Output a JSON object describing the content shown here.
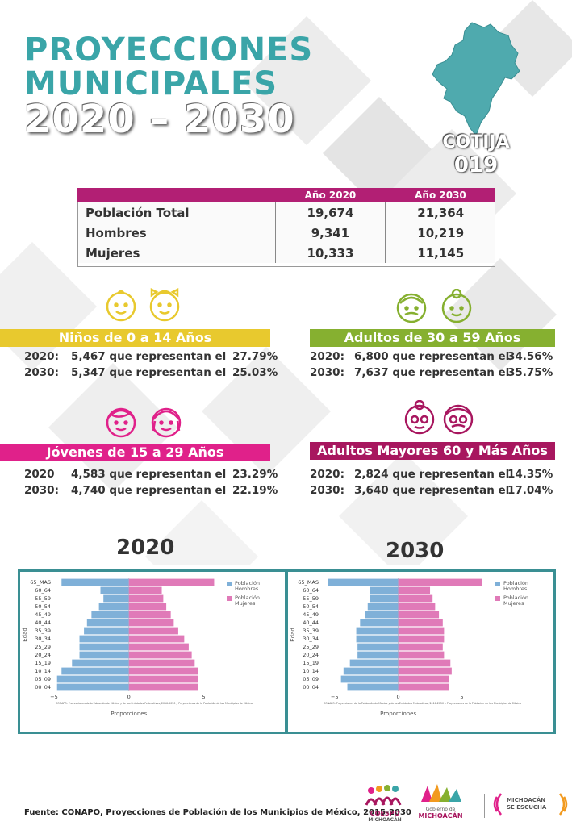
{
  "title": {
    "line1": "PROYECCIONES",
    "line2": "MUNICIPALES",
    "line3": "2020 – 2030"
  },
  "municipality": {
    "name": "COTIJA",
    "code": "019"
  },
  "population_table": {
    "headers": [
      "",
      "Año 2020",
      "Año 2030"
    ],
    "rows": [
      {
        "label": "Población Total",
        "y2020": "19,674",
        "y2030": "21,364"
      },
      {
        "label": "Hombres",
        "y2020": "9,341",
        "y2030": "10,219"
      },
      {
        "label": "Mujeres",
        "y2020": "10,333",
        "y2030": "11,145"
      }
    ]
  },
  "groups": {
    "ninos": {
      "title": "Niños de 0 a 14 Años",
      "color": "#e8c92e",
      "rows": [
        {
          "year": "2020:",
          "text": "5,467 que representan el",
          "pct": "27.79%"
        },
        {
          "year": "2030:",
          "text": "5,347 que representan el",
          "pct": "25.03%"
        }
      ]
    },
    "adultos": {
      "title": "Adultos de 30 a 59 Años",
      "color": "#86b030",
      "rows": [
        {
          "year": "2020:",
          "text": "6,800 que representan el",
          "pct": "34.56%"
        },
        {
          "year": "2030:",
          "text": "7,637 que representan el",
          "pct": "35.75%"
        }
      ]
    },
    "jovenes": {
      "title": "Jóvenes de 15 a 29 Años",
      "color": "#e0218a",
      "rows": [
        {
          "year": "2020",
          "text": "4,583 que representan el",
          "pct": "23.29%"
        },
        {
          "year": "2030:",
          "text": "4,740 que representan el",
          "pct": "22.19%"
        }
      ]
    },
    "mayores": {
      "title": "Adultos Mayores  60 y Más Años",
      "color": "#a8175f",
      "rows": [
        {
          "year": "2020:",
          "text": "2,824 que representan el",
          "pct": "14.35%"
        },
        {
          "year": "2030:",
          "text": "3,640 que representan el",
          "pct": "17.04%"
        }
      ]
    }
  },
  "pyramid_labels": {
    "left": "2020",
    "right": "2030"
  },
  "chart_data": [
    {
      "type": "bar",
      "orientation": "horizontal-pyramid",
      "categories": [
        "65_MAS",
        "60_64",
        "55_59",
        "50_54",
        "45_49",
        "40_44",
        "35_39",
        "30_34",
        "25_29",
        "20_24",
        "15_19",
        "10_14",
        "05_09",
        "00_04"
      ],
      "series": [
        {
          "name": "Población Hombres",
          "color": "#7fb0d8",
          "values": [
            -4.5,
            -1.9,
            -1.7,
            -2.0,
            -2.5,
            -2.8,
            -3.0,
            -3.3,
            -3.3,
            -3.3,
            -3.8,
            -4.5,
            -4.8,
            -4.8
          ]
        },
        {
          "name": "Población Mujeres",
          "color": "#e07ab8",
          "values": [
            5.7,
            2.2,
            2.3,
            2.5,
            2.8,
            3.0,
            3.3,
            3.7,
            4.0,
            4.2,
            4.4,
            4.6,
            4.6,
            4.6
          ]
        }
      ],
      "xlabel": "Proporciones",
      "ylabel": "Edad",
      "xticks": [
        "−5",
        "0",
        "5"
      ],
      "xlim": [
        -5,
        6
      ],
      "legend_position": "top-right",
      "note": "CONAPO: Proyecciones de la Población de México y de las Entidades Federativas, 2016-2050 y Proyecciones de la Población de los Municipios de México"
    },
    {
      "type": "bar",
      "orientation": "horizontal-pyramid",
      "categories": [
        "65_MAS",
        "60_64",
        "55_59",
        "50_54",
        "45_49",
        "40_44",
        "35_39",
        "30_34",
        "25_29",
        "20_24",
        "15_19",
        "10_14",
        "05_09",
        "00_04"
      ],
      "series": [
        {
          "name": "Población Hombres",
          "color": "#7fb0d8",
          "values": [
            -5.5,
            -2.2,
            -2.2,
            -2.4,
            -2.6,
            -3.0,
            -3.3,
            -3.3,
            -3.2,
            -3.2,
            -3.8,
            -4.3,
            -4.5,
            -4.0
          ]
        },
        {
          "name": "Población Mujeres",
          "color": "#e07ab8",
          "values": [
            6.6,
            2.5,
            2.7,
            2.9,
            3.2,
            3.5,
            3.6,
            3.6,
            3.5,
            3.6,
            4.1,
            4.2,
            4.0,
            4.0
          ]
        }
      ],
      "xlabel": "Proporciones",
      "ylabel": "Edad",
      "xticks": [
        "−5",
        "0",
        "5"
      ],
      "xlim": [
        -6,
        7
      ],
      "legend_position": "top-right",
      "note": "CONAPO: Proyecciones de la Población de México y de las Entidades Federativas, 2016-2050 y Proyecciones de la Población de los Municipios de México"
    }
  ],
  "footer": {
    "source": "Fuente: CONAPO, Proyecciones de Población de los Municipios de México, 2015-2030"
  },
  "logos": {
    "coespo": [
      "COESPO",
      "MICHOACÁN"
    ],
    "gobierno": [
      "Gobierno de",
      "MICHOACÁN"
    ],
    "michoacan": [
      "MICHOACÁN",
      "SE ESCUCHA"
    ]
  }
}
